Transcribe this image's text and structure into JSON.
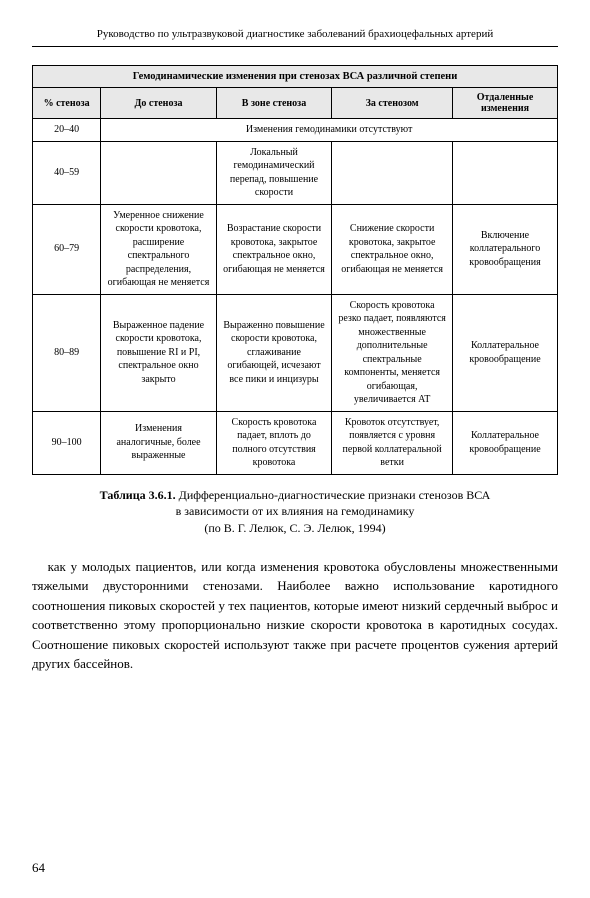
{
  "header": {
    "title": "Руководство по ультразвуковой диагностике заболеваний брахиоцефальных артерий"
  },
  "table": {
    "title": "Гемодинамические изменения при стенозах ВСА различной степени",
    "columns": {
      "c1": "% стеноза",
      "c2": "До стеноза",
      "c3": "В зоне стеноза",
      "c4": "За стенозом",
      "c5": "Отдаленные изменения"
    },
    "rows": {
      "r1": {
        "pct": "20–40",
        "span": "Изменения гемодинамики отсутствуют"
      },
      "r2": {
        "pct": "40–59",
        "before": "",
        "zone": "Локальный гемодинамический перепад, повышение скорости",
        "after": "",
        "remote": ""
      },
      "r3": {
        "pct": "60–79",
        "before": "Умеренное снижение скорости кровотока, расширение спектрального распределения, огибающая не меняется",
        "zone": "Возрастание скорости кровотока, закрытое спектральное окно, огибающая не меняется",
        "after": "Снижение скорости кровотока, закрытое спектральное окно, огибающая не меняется",
        "remote": "Включение коллатерального кровообращения"
      },
      "r4": {
        "pct": "80–89",
        "before": "Выраженное падение скорости кровотока, повышение RI и PI, спектральное окно закрыто",
        "zone": "Выраженно повышение скорости кровотока, сглаживание огибающей, исчезают все пики и инцизуры",
        "after": "Скорость кровотока резко падает, появляются множественные дополнительные спектральные компоненты, меняется огибающая, увеличивается AT",
        "remote": "Коллатеральное кровообращение"
      },
      "r5": {
        "pct": "90–100",
        "before": "Изменения аналогичные, более выраженные",
        "zone": "Скорость кровотока падает, вплоть до полного отсутствия кровотока",
        "after": "Кровоток отсутствует, появляется с уровня первой коллатеральной ветки",
        "remote": "Коллатеральное кровообращение"
      }
    }
  },
  "caption": {
    "label": "Таблица 3.6.1.",
    "text1": " Дифференциально-диагностические признаки стенозов ВСА",
    "text2": "в зависимости от их влияния на гемодинамику",
    "text3": "(по В. Г. Лелюк, С. Э. Лелюк, 1994)"
  },
  "body": {
    "paragraph": "как у молодых пациентов, или когда изменения кровотока обусловлены множественными тяжелыми двусторонними стенозами. Наиболее важно использование каротидного соотношения пиковых скоростей у тех пациентов, которые имеют низкий сердечный выброс и соответственно этому пропорционально низкие скорости кровотока в каротидных сосудах. Соотношение пиковых скоростей используют также при расчете процентов сужения артерий других бассейнов."
  },
  "pageNumber": "64"
}
